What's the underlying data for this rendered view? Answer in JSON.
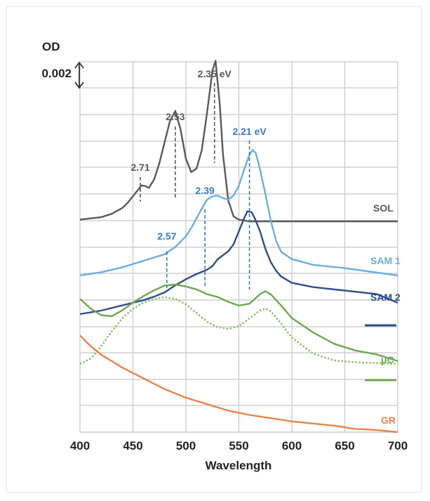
{
  "chart_data": {
    "type": "line",
    "xlabel": "Wavelength",
    "ylabel": "OD",
    "xlim": [
      400,
      700
    ],
    "x_ticks": [
      400,
      450,
      500,
      550,
      600,
      650,
      700
    ],
    "x_tick_labels": [
      "400",
      "450",
      "500",
      "550",
      "600",
      "650",
      "700"
    ],
    "grid": true,
    "scale_bar": {
      "label": "0.002",
      "value": 0.002
    },
    "series": [
      {
        "name": "SOL",
        "color": "#595959",
        "style": "solid",
        "x": [
          400,
          420,
          430,
          440,
          445,
          450,
          455,
          458,
          462,
          465,
          470,
          475,
          480,
          485,
          490,
          495,
          500,
          505,
          510,
          515,
          520,
          525,
          528,
          532,
          535,
          540,
          545,
          550,
          560,
          580,
          600,
          650,
          700
        ],
        "y": [
          0.2,
          0.5,
          0.9,
          1.6,
          2.2,
          3.0,
          3.8,
          4.3,
          4.2,
          4.0,
          5.0,
          7.0,
          9.5,
          12.0,
          13.2,
          11.0,
          7.5,
          5.9,
          6.3,
          8.5,
          13.0,
          18.0,
          19.2,
          14.0,
          8.0,
          2.5,
          0.6,
          0.2,
          0.0,
          0.0,
          0.0,
          0.0,
          0.0
        ]
      },
      {
        "name": "SAM 1",
        "color": "#6aaee0",
        "style": "solid",
        "x": [
          400,
          420,
          440,
          460,
          480,
          490,
          500,
          505,
          510,
          515,
          520,
          525,
          530,
          535,
          540,
          545,
          550,
          555,
          560,
          563,
          566,
          570,
          575,
          580,
          585,
          590,
          600,
          620,
          650,
          700
        ],
        "y": [
          0.0,
          0.4,
          1.0,
          1.8,
          2.6,
          3.5,
          4.8,
          5.8,
          7.0,
          8.2,
          9.3,
          9.7,
          9.8,
          9.5,
          9.3,
          9.8,
          11.0,
          13.0,
          14.8,
          15.4,
          15.0,
          13.0,
          10.0,
          6.8,
          4.3,
          2.9,
          2.0,
          1.3,
          0.9,
          0.0
        ]
      },
      {
        "name": "SAM 2",
        "color": "#2e4d8f",
        "style": "solid",
        "x": [
          400,
          420,
          440,
          460,
          470,
          480,
          490,
          500,
          510,
          520,
          525,
          530,
          540,
          545,
          550,
          555,
          558,
          562,
          565,
          570,
          575,
          580,
          585,
          590,
          600,
          620,
          650,
          680,
          700
        ],
        "y": [
          0.0,
          0.4,
          1.0,
          1.6,
          2.0,
          2.5,
          3.3,
          4.0,
          4.6,
          5.1,
          5.5,
          6.3,
          7.2,
          8.0,
          9.5,
          11.0,
          11.8,
          11.7,
          11.0,
          9.5,
          7.5,
          6.0,
          5.0,
          4.3,
          3.6,
          3.1,
          2.7,
          2.3,
          1.3
        ]
      },
      {
        "name": "μC",
        "color": "#6ea84e",
        "style": "solid",
        "x": [
          400,
          410,
          420,
          430,
          440,
          450,
          460,
          470,
          480,
          490,
          500,
          510,
          520,
          530,
          540,
          550,
          560,
          570,
          575,
          580,
          590,
          600,
          620,
          640,
          660,
          680,
          700
        ],
        "y": [
          6.0,
          5.0,
          4.3,
          4.2,
          4.8,
          5.6,
          6.3,
          6.9,
          7.4,
          7.5,
          7.3,
          7.0,
          6.5,
          6.2,
          5.7,
          5.3,
          5.5,
          6.5,
          6.8,
          6.5,
          5.3,
          4.0,
          2.5,
          1.3,
          0.6,
          0.2,
          -0.5
        ]
      },
      {
        "name": "μC (dotted)",
        "color": "#8cc06e",
        "style": "dotted",
        "x": [
          400,
          410,
          420,
          430,
          440,
          450,
          460,
          470,
          480,
          490,
          500,
          510,
          520,
          530,
          540,
          550,
          560,
          570,
          575,
          580,
          590,
          600,
          620,
          640,
          660,
          680,
          700
        ],
        "y": [
          0.0,
          0.6,
          2.0,
          3.7,
          5.2,
          6.3,
          7.0,
          7.4,
          7.6,
          7.4,
          6.8,
          5.8,
          4.8,
          4.2,
          4.0,
          4.3,
          5.2,
          6.1,
          6.3,
          6.0,
          4.6,
          3.0,
          1.2,
          0.4,
          0.2,
          0.1,
          0.0
        ]
      },
      {
        "name": "GR",
        "color": "#e8844a",
        "style": "solid",
        "x": [
          400,
          410,
          420,
          440,
          460,
          480,
          500,
          520,
          540,
          560,
          580,
          600,
          620,
          640,
          660,
          680,
          700
        ],
        "y": [
          9.0,
          8.0,
          7.2,
          6.0,
          5.0,
          4.0,
          3.2,
          2.6,
          2.0,
          1.6,
          1.3,
          1.0,
          0.8,
          0.6,
          0.3,
          0.2,
          0.0
        ]
      }
    ],
    "series_labels": [
      {
        "series": "SOL",
        "text": "SOL"
      },
      {
        "series": "SAM 1",
        "text": "SAM 1"
      },
      {
        "series": "SAM 2",
        "text": "SAM 2"
      },
      {
        "series": "μC",
        "text": "μC"
      },
      {
        "series": "GR",
        "text": "GR"
      }
    ],
    "annotations": [
      {
        "text": "2.71",
        "x": 457,
        "color": "#595959"
      },
      {
        "text": "2.53",
        "x": 490,
        "color": "#595959"
      },
      {
        "text": "2.35 eV",
        "x": 527,
        "color": "#595959"
      },
      {
        "text": "2.21 eV",
        "x": 560,
        "color": "#3b7bbf"
      },
      {
        "text": "2.39",
        "x": 518,
        "color": "#3b7bbf"
      },
      {
        "text": "2.57",
        "x": 482,
        "color": "#3b7bbf"
      }
    ]
  }
}
